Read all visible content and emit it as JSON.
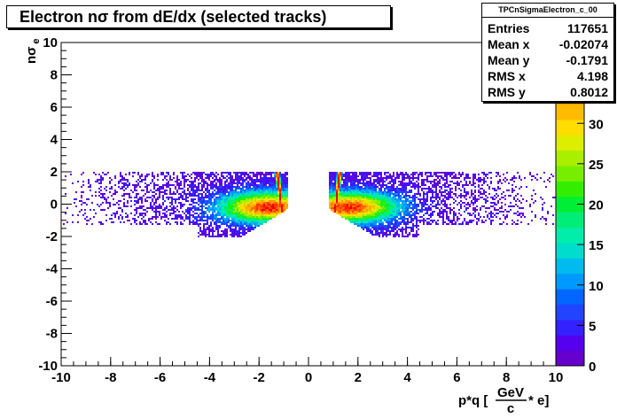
{
  "title": "Electron nσ from dE/dx (selected tracks)",
  "stats": {
    "name": "TPCnSigmaElectron_c_00",
    "rows": [
      {
        "label": "Entries",
        "value": "117651"
      },
      {
        "label": "Mean x",
        "value": "-0.02074"
      },
      {
        "label": "Mean y",
        "value": "-0.1791"
      },
      {
        "label": "RMS x",
        "value": "4.198"
      },
      {
        "label": "RMS y",
        "value": "0.8012"
      }
    ]
  },
  "axes": {
    "ylabel_main": "nσ",
    "ylabel_sub": "e",
    "xlabel_pre": "p*q [",
    "xlabel_num": "GeV",
    "xlabel_den": "c",
    "xlabel_post": " * e]"
  },
  "chart_data": {
    "type": "heatmap",
    "title": "Electron nσ from dE/dx (selected tracks)",
    "xlabel": "p*q [GeV/c * e]",
    "ylabel": "nσ e",
    "xlim": [
      -10,
      10
    ],
    "ylim": [
      -10,
      10
    ],
    "zlim": [
      0,
      40
    ],
    "x_ticks": [
      -10,
      -8,
      -6,
      -4,
      -2,
      0,
      2,
      4,
      6,
      8,
      10
    ],
    "y_ticks": [
      -10,
      -8,
      -6,
      -4,
      -2,
      0,
      2,
      4,
      6,
      8,
      10
    ],
    "z_ticks": [
      0,
      5,
      10,
      15,
      20,
      25,
      30,
      35,
      40
    ],
    "populated_region": {
      "nsigma_range": [
        -2,
        2
      ],
      "gap_pq": [
        -0.8,
        0.8
      ]
    },
    "colors": [
      "#6600cc",
      "#5500ee",
      "#3322ff",
      "#2244ff",
      "#0066ff",
      "#0099ff",
      "#00bbee",
      "#00ddcc",
      "#00eeaa",
      "#00ee77",
      "#00ee33",
      "#33ee00",
      "#77ee00",
      "#aaee00",
      "#ddee00",
      "#ffdd00",
      "#ffbb00",
      "#ff9900",
      "#ff6600",
      "#ff3300",
      "#ee0000"
    ],
    "legend_position": "right"
  }
}
